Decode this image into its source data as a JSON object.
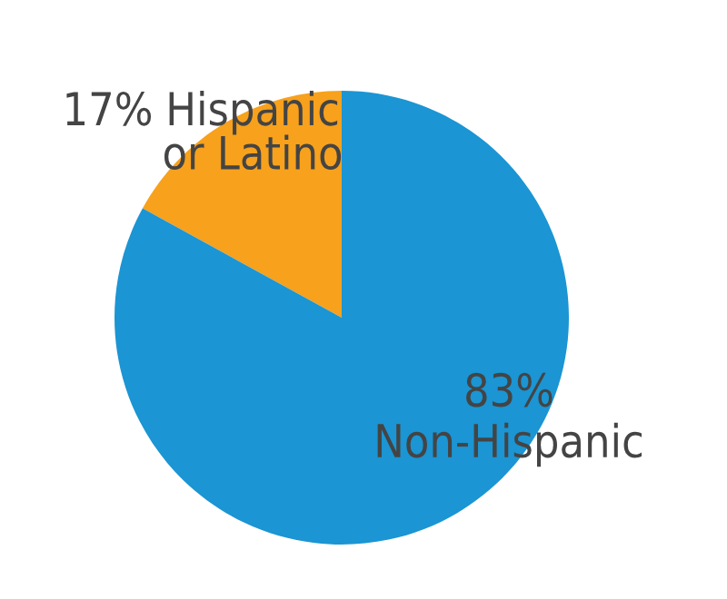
{
  "chart_data": {
    "type": "pie",
    "categories": [
      "Hispanic or Latino",
      "Non-Hispanic"
    ],
    "values": [
      17,
      83
    ],
    "colors": [
      "#f7a11c",
      "#1b95d3"
    ],
    "value_labels": [
      "17%",
      "83%"
    ]
  }
}
